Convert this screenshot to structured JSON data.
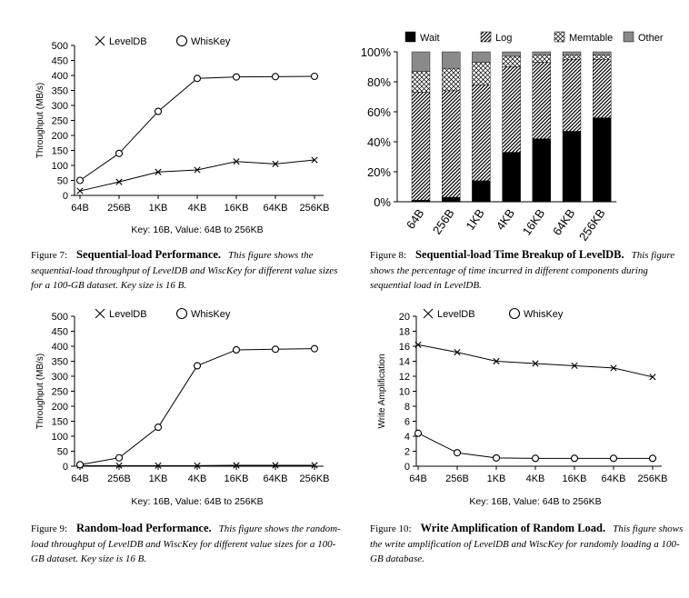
{
  "figures": [
    {
      "number": "Figure 7:",
      "title": "Sequential-load Performance.",
      "body": "This figure shows the sequential-load throughput of LevelDB and WiscKey for different value sizes for a 100-GB dataset. Key size is 16 B."
    },
    {
      "number": "Figure 8:",
      "title": "Sequential-load Time Breakup of LevelDB.",
      "body": "This figure shows the percentage of time incurred in different components during sequential load in LevelDB."
    },
    {
      "number": "Figure 9:",
      "title": "Random-load Performance.",
      "body": "This figure shows the random-load throughput of LevelDB and WiscKey for different value sizes for a 100-GB dataset. Key size is 16 B."
    },
    {
      "number": "Figure 10:",
      "title": "Write Amplification of Random Load.",
      "body": "This figure shows the write amplification of LevelDB and WiscKey for randomly loading a 100-GB database."
    }
  ],
  "chart_data": [
    {
      "id": "fig7",
      "type": "line",
      "categories": [
        "64B",
        "256B",
        "1KB",
        "4KB",
        "16KB",
        "64KB",
        "256KB"
      ],
      "series": [
        {
          "name": "LevelDB",
          "marker": "x",
          "values": [
            15,
            45,
            78,
            85,
            113,
            105,
            118
          ]
        },
        {
          "name": "WhisKey",
          "marker": "o",
          "values": [
            50,
            140,
            280,
            390,
            395,
            396,
            397
          ]
        }
      ],
      "yticks": [
        "0",
        "50",
        "100",
        "150",
        "200",
        "250",
        "300",
        "350",
        "400",
        "450",
        "500"
      ],
      "ylim": [
        0,
        500
      ],
      "ylabel": "Throughput (MB/s)",
      "xlabel": "Key: 16B, Value: 64B to 256KB",
      "legend_position": "top"
    },
    {
      "id": "fig8",
      "type": "bar",
      "stacked": true,
      "categories": [
        "64B",
        "256B",
        "1KB",
        "4KB",
        "16KB",
        "64KB",
        "256KB"
      ],
      "series": [
        {
          "name": "Wait",
          "pattern": "solid-black",
          "values": [
            1,
            3,
            14,
            33,
            42,
            47,
            56
          ]
        },
        {
          "name": "Log",
          "pattern": "diagonal-hatch",
          "values": [
            72,
            71,
            64,
            57,
            51,
            48,
            39
          ]
        },
        {
          "name": "Memtable",
          "pattern": "cross-hatch",
          "values": [
            14,
            15,
            15,
            7,
            5,
            3,
            3
          ]
        },
        {
          "name": "Other",
          "pattern": "solid-gray",
          "values": [
            13,
            11,
            7,
            3,
            2,
            2,
            2
          ]
        }
      ],
      "yticks": [
        "0%",
        "20%",
        "40%",
        "60%",
        "80%",
        "100%"
      ],
      "ylim": [
        0,
        100
      ],
      "legend_position": "top"
    },
    {
      "id": "fig9",
      "type": "line",
      "categories": [
        "64B",
        "256B",
        "1KB",
        "4KB",
        "16KB",
        "64KB",
        "256KB"
      ],
      "series": [
        {
          "name": "LevelDB",
          "marker": "x",
          "values": [
            2,
            2,
            2,
            2,
            3,
            3,
            3
          ]
        },
        {
          "name": "WhisKey",
          "marker": "o",
          "values": [
            5,
            28,
            130,
            335,
            388,
            390,
            392
          ]
        }
      ],
      "yticks": [
        "0",
        "50",
        "100",
        "150",
        "200",
        "250",
        "300",
        "350",
        "400",
        "450",
        "500"
      ],
      "ylim": [
        0,
        500
      ],
      "ylabel": "Throughput (MB/s)",
      "xlabel": "Key: 16B, Value: 64B to 256KB",
      "legend_position": "top"
    },
    {
      "id": "fig10",
      "type": "line",
      "categories": [
        "64B",
        "256B",
        "1KB",
        "4KB",
        "16KB",
        "64KB",
        "256KB"
      ],
      "series": [
        {
          "name": "LevelDB",
          "marker": "x",
          "values": [
            16.2,
            15.2,
            14.0,
            13.7,
            13.4,
            13.1,
            11.9
          ]
        },
        {
          "name": "WhisKey",
          "marker": "o",
          "values": [
            4.4,
            1.8,
            1.1,
            1.05,
            1.05,
            1.05,
            1.05
          ]
        }
      ],
      "yticks": [
        "0",
        "2",
        "4",
        "6",
        "8",
        "10",
        "12",
        "14",
        "16",
        "18",
        "20"
      ],
      "ylim": [
        0,
        20
      ],
      "ylabel": "Write Amplification",
      "xlabel": "Key: 16B, Value: 64B to 256KB",
      "legend_position": "top"
    }
  ]
}
